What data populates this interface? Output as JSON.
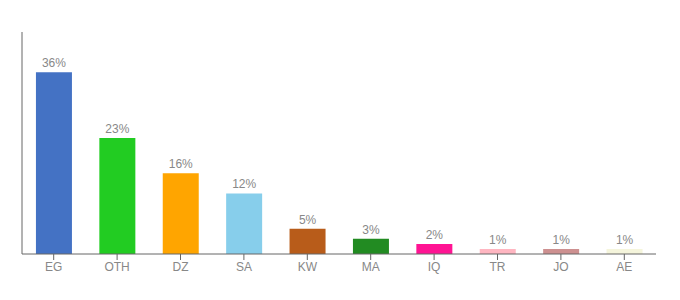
{
  "chart_data": {
    "type": "bar",
    "categories": [
      "EG",
      "OTH",
      "DZ",
      "SA",
      "KW",
      "MA",
      "IQ",
      "TR",
      "JO",
      "AE"
    ],
    "values": [
      36,
      23,
      16,
      12,
      5,
      3,
      2,
      1,
      1,
      1
    ],
    "value_labels": [
      "36%",
      "23%",
      "16%",
      "12%",
      "5%",
      "3%",
      "2%",
      "1%",
      "1%",
      "1%"
    ],
    "data_labels": true,
    "colors": [
      "#4472C4",
      "#22CC22",
      "#FFA500",
      "#87CEEB",
      "#B85C1A",
      "#228B22",
      "#FF1493",
      "#FFB6C1",
      "#CD9090",
      "#F5F5DC"
    ],
    "ylim": [
      0,
      44
    ],
    "tick_labels": "x",
    "grid": false
  }
}
